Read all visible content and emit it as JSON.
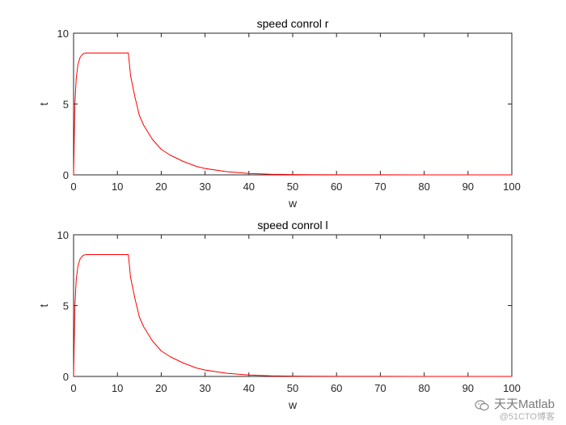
{
  "colors": {
    "series": "#ff0000",
    "axis": "#262626",
    "background": "#ffffff"
  },
  "watermark": {
    "main": "天天Matlab",
    "sub": "@51CTO博客",
    "icon": "wechat-icon"
  },
  "chart_data": [
    {
      "type": "line",
      "title": "speed conrol r",
      "xlabel": "w",
      "ylabel": "t",
      "xlim": [
        0,
        100
      ],
      "ylim": [
        0,
        10
      ],
      "xticks": [
        0,
        10,
        20,
        30,
        40,
        50,
        60,
        70,
        80,
        90,
        100
      ],
      "yticks": [
        0,
        5,
        10
      ],
      "grid": false,
      "series": [
        {
          "color": "#ff0000",
          "x": [
            0,
            0.3,
            0.6,
            1,
            1.5,
            2,
            2.5,
            3,
            4,
            6,
            8,
            10,
            12,
            12.5,
            13,
            14,
            15,
            16,
            18,
            20,
            22,
            25,
            28,
            30,
            35,
            40,
            45,
            50,
            60,
            70,
            80,
            90,
            100
          ],
          "y": [
            0,
            5.0,
            6.8,
            7.8,
            8.3,
            8.5,
            8.58,
            8.6,
            8.6,
            8.6,
            8.6,
            8.6,
            8.6,
            8.6,
            7.0,
            5.5,
            4.2,
            3.5,
            2.5,
            1.8,
            1.4,
            0.95,
            0.6,
            0.45,
            0.22,
            0.1,
            0.04,
            0.02,
            0.01,
            0.005,
            0.002,
            0.001,
            0
          ]
        }
      ]
    },
    {
      "type": "line",
      "title": "speed conrol l",
      "xlabel": "w",
      "ylabel": "t",
      "xlim": [
        0,
        100
      ],
      "ylim": [
        0,
        10
      ],
      "xticks": [
        0,
        10,
        20,
        30,
        40,
        50,
        60,
        70,
        80,
        90,
        100
      ],
      "yticks": [
        0,
        5,
        10
      ],
      "grid": false,
      "series": [
        {
          "color": "#ff0000",
          "x": [
            0,
            0.3,
            0.6,
            1,
            1.5,
            2,
            2.5,
            3,
            4,
            6,
            8,
            10,
            12,
            12.5,
            13,
            14,
            15,
            16,
            18,
            20,
            22,
            25,
            28,
            30,
            35,
            40,
            45,
            50,
            60,
            70,
            80,
            90,
            100
          ],
          "y": [
            0,
            5.0,
            6.8,
            7.8,
            8.3,
            8.5,
            8.58,
            8.6,
            8.6,
            8.6,
            8.6,
            8.6,
            8.6,
            8.6,
            7.0,
            5.5,
            4.2,
            3.5,
            2.5,
            1.8,
            1.4,
            0.95,
            0.6,
            0.45,
            0.22,
            0.1,
            0.04,
            0.02,
            0.01,
            0.005,
            0.002,
            0.001,
            0
          ]
        }
      ]
    }
  ]
}
